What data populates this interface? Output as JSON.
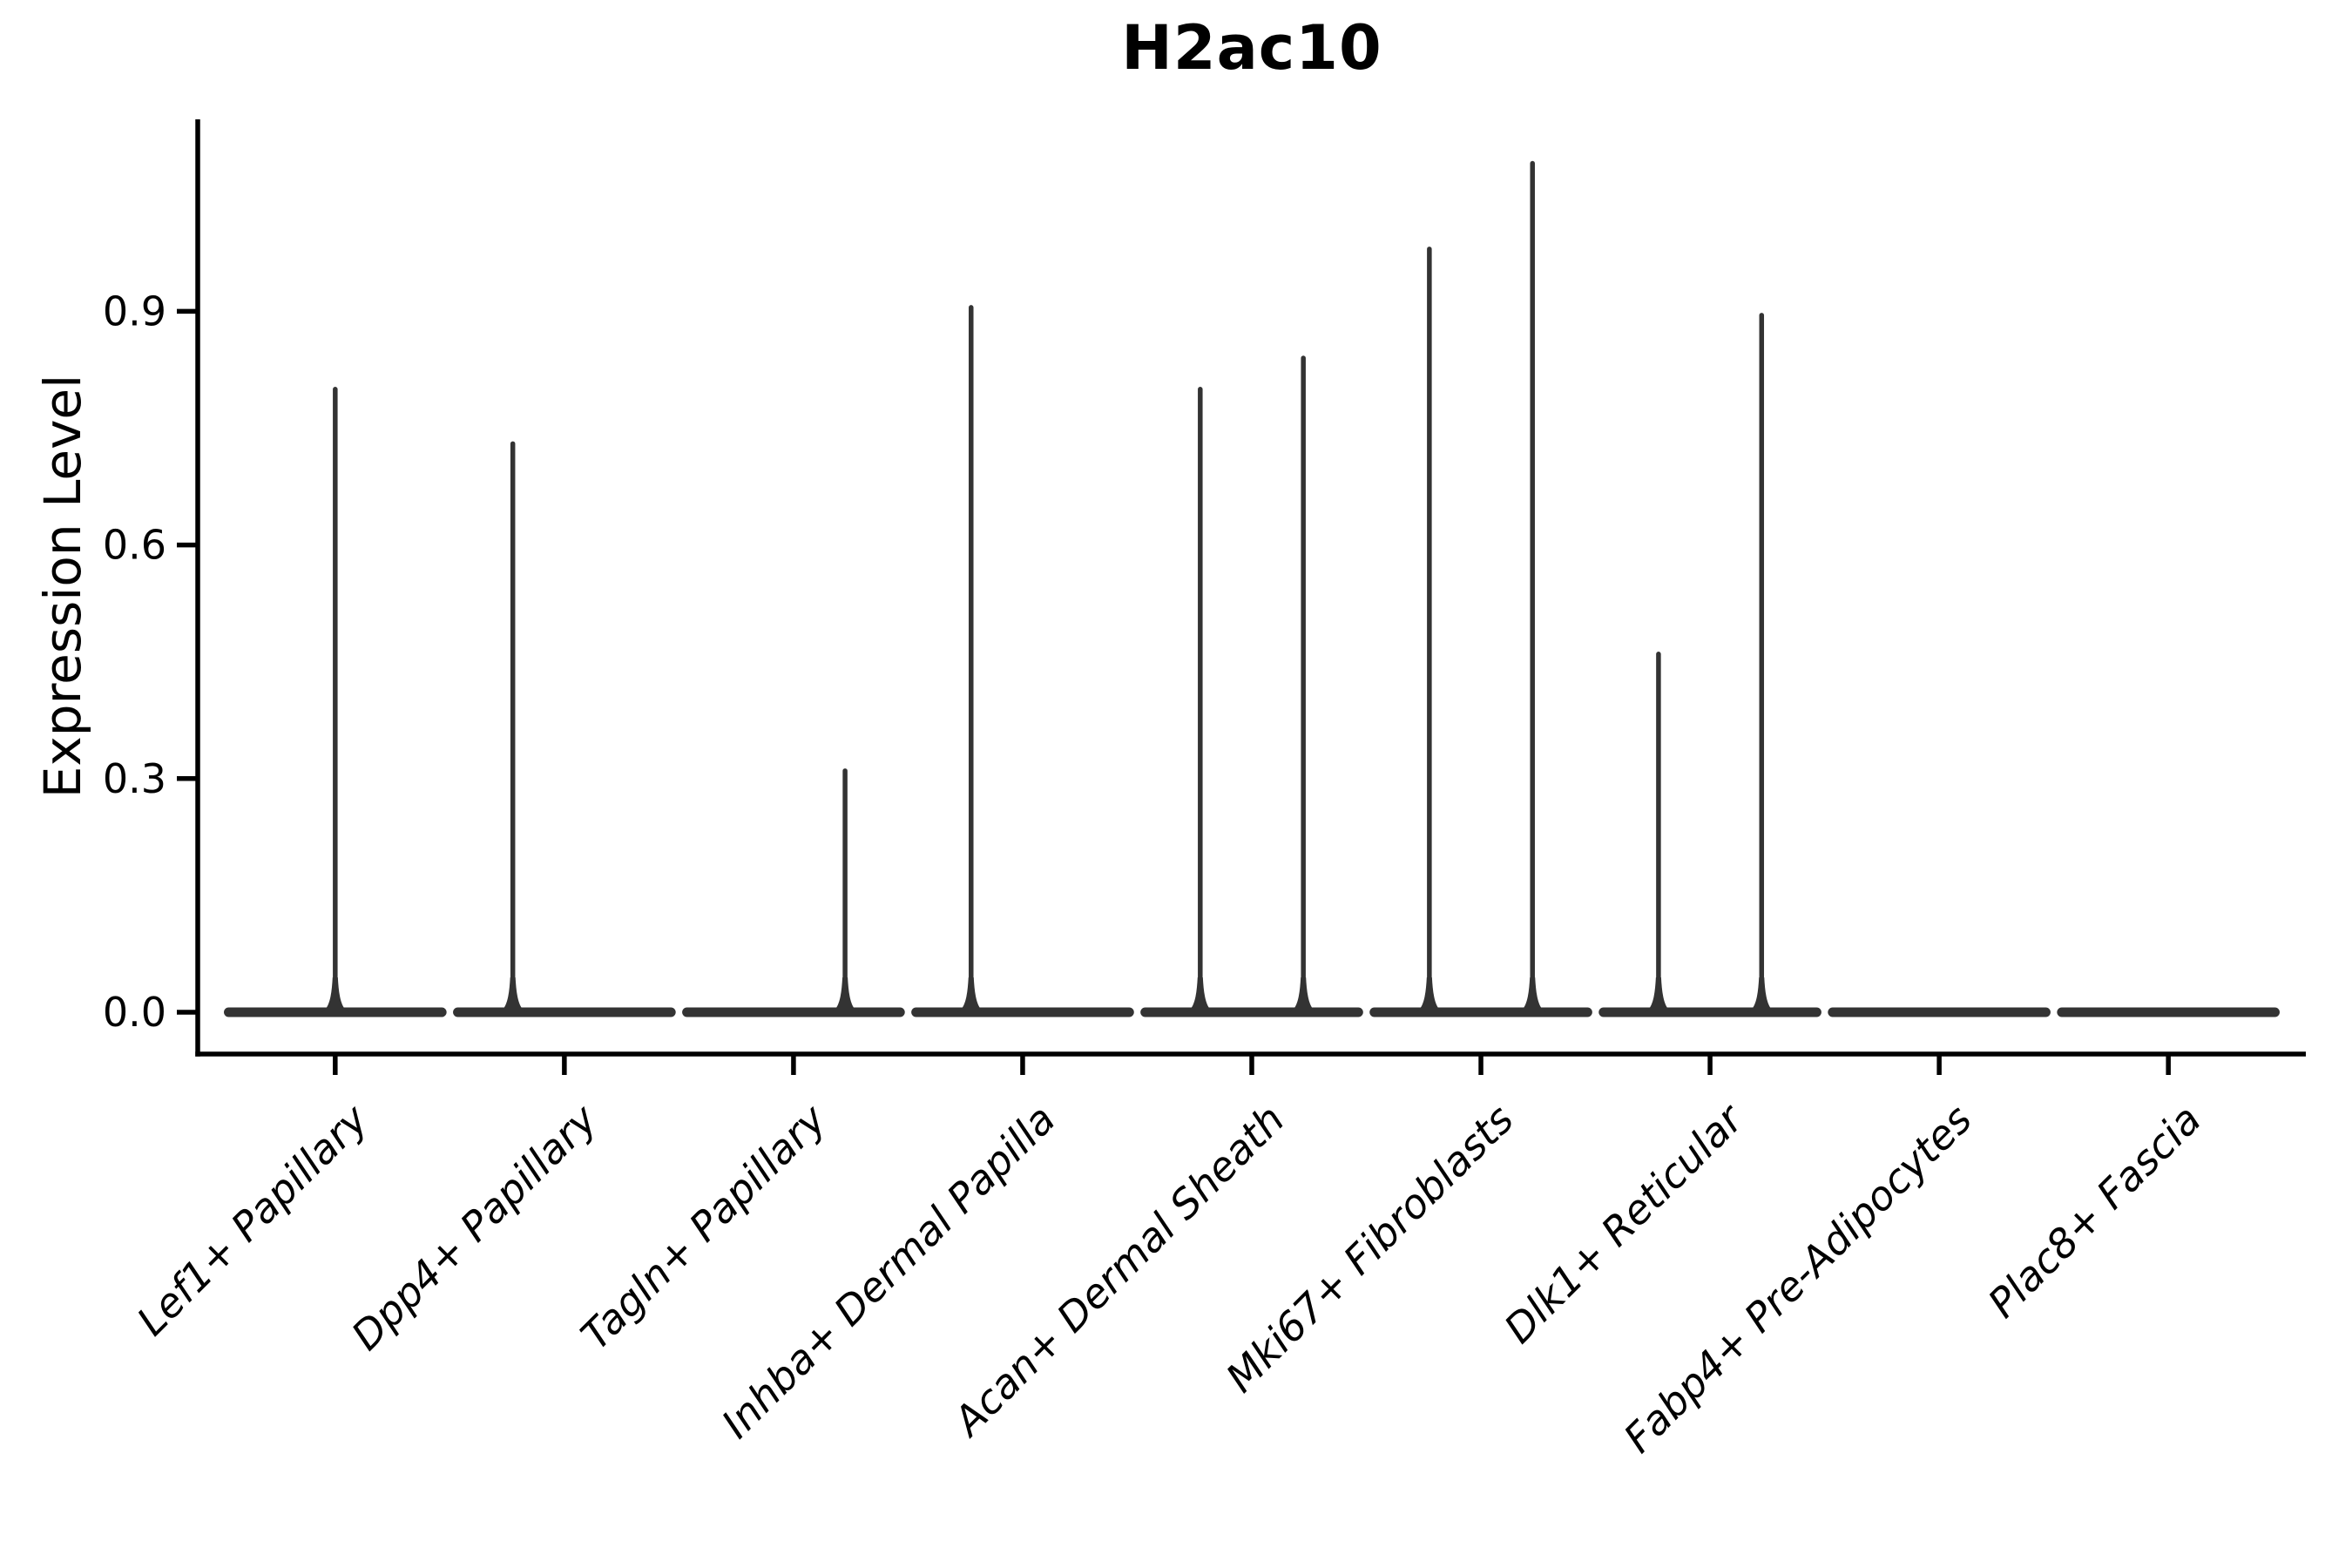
{
  "figure": {
    "background": "#ffffff"
  },
  "chart_data": {
    "type": "violin",
    "title": "H2ac10",
    "xlabel": "",
    "ylabel": "Expression Level",
    "grid": false,
    "legend": "none",
    "ylim": [
      0.0,
      1.15
    ],
    "ytick_values": [
      0.0,
      0.3,
      0.6,
      0.9
    ],
    "ytick_labels": [
      "0.0",
      "0.3",
      "0.6",
      "0.9"
    ],
    "categories": [
      "Lef1+ Papillary",
      "Dpp4+ Papillary",
      "Tagln+ Papillary",
      "Inhba+ Dermal Papilla",
      "Acan+ Dermal Sheath",
      "Mki67+ Fibroblasts",
      "Dlk1+ Reticular",
      "Fabp4+ Pre-Adipocytes",
      "Plac8+ Fascia"
    ],
    "violins": [
      {
        "category": "Lef1+ Papillary",
        "baseline": 0.0,
        "spikes": [
          {
            "offset": 0.0,
            "max": 0.8
          }
        ]
      },
      {
        "category": "Dpp4+ Papillary",
        "baseline": 0.0,
        "spikes": [
          {
            "offset": -0.225,
            "max": 0.73
          }
        ]
      },
      {
        "category": "Tagln+ Papillary",
        "baseline": 0.0,
        "spikes": [
          {
            "offset": 0.225,
            "max": 0.31
          }
        ]
      },
      {
        "category": "Inhba+ Dermal Papilla",
        "baseline": 0.0,
        "spikes": [
          {
            "offset": -0.225,
            "max": 0.905
          }
        ]
      },
      {
        "category": "Acan+ Dermal Sheath",
        "baseline": 0.0,
        "spikes": [
          {
            "offset": -0.225,
            "max": 0.8
          },
          {
            "offset": 0.225,
            "max": 0.84
          }
        ]
      },
      {
        "category": "Mki67+ Fibroblasts",
        "baseline": 0.0,
        "spikes": [
          {
            "offset": -0.225,
            "max": 0.98
          },
          {
            "offset": 0.225,
            "max": 1.09
          }
        ]
      },
      {
        "category": "Dlk1+ Reticular",
        "baseline": 0.0,
        "spikes": [
          {
            "offset": -0.225,
            "max": 0.46
          },
          {
            "offset": 0.225,
            "max": 0.895
          }
        ]
      },
      {
        "category": "Fabp4+ Pre-Adipocytes",
        "baseline": 0.0,
        "spikes": []
      },
      {
        "category": "Plac8+ Fascia",
        "baseline": 0.0,
        "spikes": []
      }
    ],
    "colors": {
      "violin": "#333333",
      "axis": "#000000",
      "text": "#000000"
    }
  }
}
